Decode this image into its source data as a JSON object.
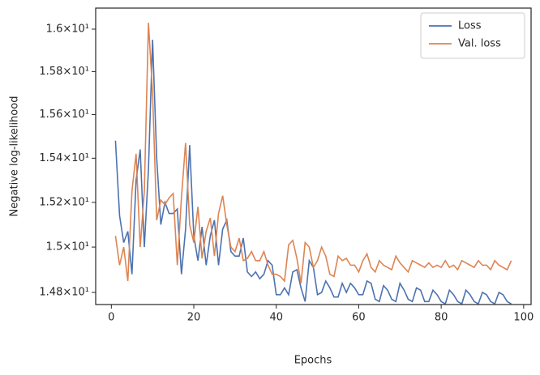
{
  "chart_data": {
    "type": "line",
    "xlabel": "Epochs",
    "ylabel": "Negative log-likelihood",
    "log_y": true,
    "grid": false,
    "legend": "upper right",
    "xlim": [
      -3.8,
      101.8
    ],
    "xticks": [
      0,
      20,
      40,
      60,
      80,
      100
    ],
    "ylim": [
      14.747,
      16.1
    ],
    "yticks": [
      {
        "value": 14.8,
        "label": "1.48×10¹"
      },
      {
        "value": 15.0,
        "label": "1.5×10¹"
      },
      {
        "value": 15.2,
        "label": "1.52×10¹"
      },
      {
        "value": 15.4,
        "label": "1.54×10¹"
      },
      {
        "value": 15.6,
        "label": "1.56×10¹"
      },
      {
        "value": 15.8,
        "label": "1.58×10¹"
      },
      {
        "value": 16.0,
        "label": "1.6×10¹"
      }
    ],
    "x": [
      1,
      2,
      3,
      4,
      5,
      6,
      7,
      8,
      9,
      10,
      11,
      12,
      13,
      14,
      15,
      16,
      17,
      18,
      19,
      20,
      21,
      22,
      23,
      24,
      25,
      26,
      27,
      28,
      29,
      30,
      31,
      32,
      33,
      34,
      35,
      36,
      37,
      38,
      39,
      40,
      41,
      42,
      43,
      44,
      45,
      46,
      47,
      48,
      49,
      50,
      51,
      52,
      53,
      54,
      55,
      56,
      57,
      58,
      59,
      60,
      61,
      62,
      63,
      64,
      65,
      66,
      67,
      68,
      69,
      70,
      71,
      72,
      73,
      74,
      75,
      76,
      77,
      78,
      79,
      80,
      81,
      82,
      83,
      84,
      85,
      86,
      87,
      88,
      89,
      90,
      91,
      92,
      93,
      94,
      95,
      96,
      97
    ],
    "series": [
      {
        "name": "Loss",
        "color": "#4c72b0",
        "values": [
          15.48,
          15.14,
          15.02,
          15.07,
          14.88,
          15.3,
          15.44,
          15.0,
          15.35,
          15.95,
          15.4,
          15.1,
          15.2,
          15.15,
          15.15,
          15.17,
          14.88,
          15.08,
          15.46,
          15.05,
          14.94,
          15.09,
          14.92,
          15.05,
          15.12,
          14.92,
          15.08,
          15.12,
          14.98,
          14.96,
          14.96,
          15.04,
          14.89,
          14.87,
          14.89,
          14.86,
          14.88,
          14.94,
          14.92,
          14.79,
          14.79,
          14.82,
          14.79,
          14.89,
          14.9,
          14.82,
          14.76,
          14.94,
          14.91,
          14.79,
          14.8,
          14.85,
          14.82,
          14.78,
          14.78,
          14.84,
          14.8,
          14.84,
          14.82,
          14.79,
          14.79,
          14.85,
          14.84,
          14.77,
          14.76,
          14.83,
          14.81,
          14.77,
          14.76,
          14.84,
          14.81,
          14.77,
          14.76,
          14.82,
          14.81,
          14.76,
          14.76,
          14.81,
          14.79,
          14.76,
          14.75,
          14.81,
          14.79,
          14.76,
          14.75,
          14.81,
          14.79,
          14.76,
          14.75,
          14.8,
          14.79,
          14.76,
          14.75,
          14.8,
          14.79,
          14.76,
          14.75
        ]
      },
      {
        "name": "Val. loss",
        "color": "#dd8452",
        "values": [
          15.05,
          14.92,
          15.0,
          14.85,
          15.25,
          15.42,
          15.0,
          15.25,
          16.03,
          15.7,
          15.12,
          15.21,
          15.19,
          15.22,
          15.24,
          14.92,
          15.22,
          15.47,
          15.1,
          15.02,
          15.18,
          14.95,
          15.07,
          15.13,
          14.96,
          15.15,
          15.23,
          15.1,
          15.0,
          14.98,
          15.04,
          14.94,
          14.95,
          14.98,
          14.94,
          14.94,
          14.98,
          14.92,
          14.88,
          14.88,
          14.87,
          14.85,
          15.01,
          15.03,
          14.95,
          14.84,
          15.02,
          15.0,
          14.91,
          14.94,
          15.0,
          14.96,
          14.88,
          14.87,
          14.96,
          14.94,
          14.95,
          14.92,
          14.92,
          14.89,
          14.94,
          14.97,
          14.91,
          14.89,
          14.94,
          14.92,
          14.91,
          14.9,
          14.96,
          14.93,
          14.91,
          14.89,
          14.94,
          14.93,
          14.92,
          14.91,
          14.93,
          14.91,
          14.92,
          14.91,
          14.94,
          14.91,
          14.92,
          14.9,
          14.94,
          14.93,
          14.92,
          14.91,
          14.94,
          14.92,
          14.92,
          14.9,
          14.94,
          14.92,
          14.91,
          14.9,
          14.94
        ]
      }
    ]
  }
}
